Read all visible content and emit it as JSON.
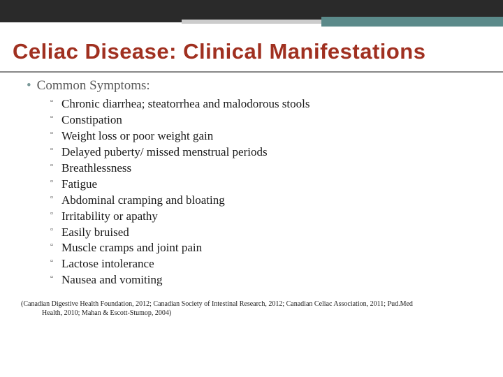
{
  "decor": {
    "topbar_color": "#2a2a2a",
    "teal_color": "#5b8a8a",
    "gray_color": "#cccccc",
    "title_color": "#a03020"
  },
  "title": "Celiac Disease: Clinical Manifestations",
  "section_heading": "Common Symptoms:",
  "symptoms": [
    "Chronic diarrhea; steatorrhea and malodorous stools",
    "Constipation",
    "Weight loss or poor weight gain",
    "Delayed puberty/ missed menstrual periods",
    "Breathlessness",
    "Fatigue",
    "Abdominal cramping and bloating",
    "Irritability or apathy",
    "Easily bruised",
    "Muscle cramps and joint pain",
    "Lactose intolerance",
    "Nausea and vomiting"
  ],
  "citation_line1": "(Canadian Digestive Health Foundation, 2012; Canadian Society of Intestinal Research, 2012; Canadian Celiac Association, 2011; Pud.Med",
  "citation_line2": "Health, 2010; Mahan & Escott-Stumop, 2004)"
}
